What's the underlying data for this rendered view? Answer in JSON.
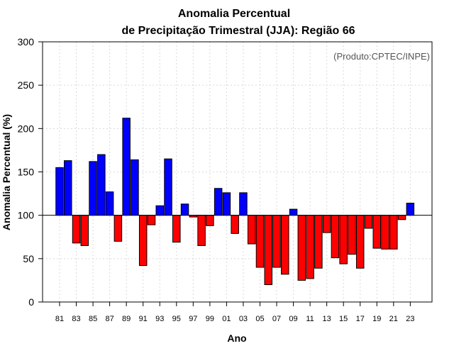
{
  "chart_data": {
    "type": "bar",
    "title": [
      "Anomalia Percentual",
      "de Precipitação Trimestral (JJA): Região 66"
    ],
    "xlabel": "Ano",
    "ylabel": "Anomalia Percentual (%)",
    "annotation": "(Produto:CPTEC/INPE)",
    "baseline": 100,
    "ylim": [
      0,
      300
    ],
    "yticks": [
      0,
      50,
      100,
      150,
      200,
      250,
      300
    ],
    "grid": true,
    "colors": {
      "above": "#0000ff",
      "below": "#ff0000",
      "edge": "#000000",
      "grid": "#d9d9d9"
    },
    "x_tick_labels": [
      "81",
      "83",
      "85",
      "87",
      "89",
      "91",
      "93",
      "95",
      "97",
      "99",
      "01",
      "03",
      "05",
      "07",
      "09",
      "11",
      "13",
      "15",
      "17",
      "19",
      "21",
      "23"
    ],
    "years": [
      1981,
      1982,
      1983,
      1984,
      1985,
      1986,
      1987,
      1988,
      1989,
      1990,
      1991,
      1992,
      1993,
      1994,
      1995,
      1996,
      1997,
      1998,
      1999,
      2000,
      2001,
      2002,
      2003,
      2004,
      2005,
      2006,
      2007,
      2008,
      2009,
      2010,
      2011,
      2012,
      2013,
      2014,
      2015,
      2016,
      2017,
      2018,
      2019,
      2020,
      2021,
      2022,
      2023
    ],
    "values": [
      155,
      163,
      68,
      65,
      162,
      170,
      127,
      70,
      212,
      164,
      42,
      89,
      111,
      165,
      69,
      113,
      98,
      65,
      88,
      131,
      126,
      79,
      126,
      67,
      40,
      20,
      40,
      32,
      107,
      25,
      27,
      39,
      80,
      51,
      44,
      55,
      39,
      85,
      62,
      61,
      61,
      95,
      114
    ]
  }
}
